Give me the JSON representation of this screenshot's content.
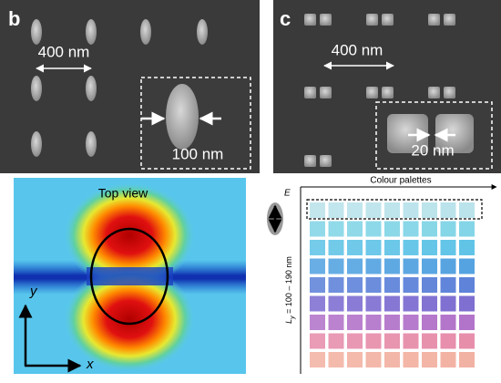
{
  "panel_b": {
    "label": "b",
    "spacing": "400 nm",
    "size": "100 nm",
    "view": "Top view",
    "axis_y": "y",
    "axis_x": "x"
  },
  "panel_c": {
    "label": "c",
    "spacing": "400 nm",
    "gap": "20 nm",
    "palette_title": "Colour palettes",
    "field": "E",
    "length": {
      "symbol": "L",
      "subscript": "y",
      "range": " = 100 – 190 nm"
    }
  }
}
